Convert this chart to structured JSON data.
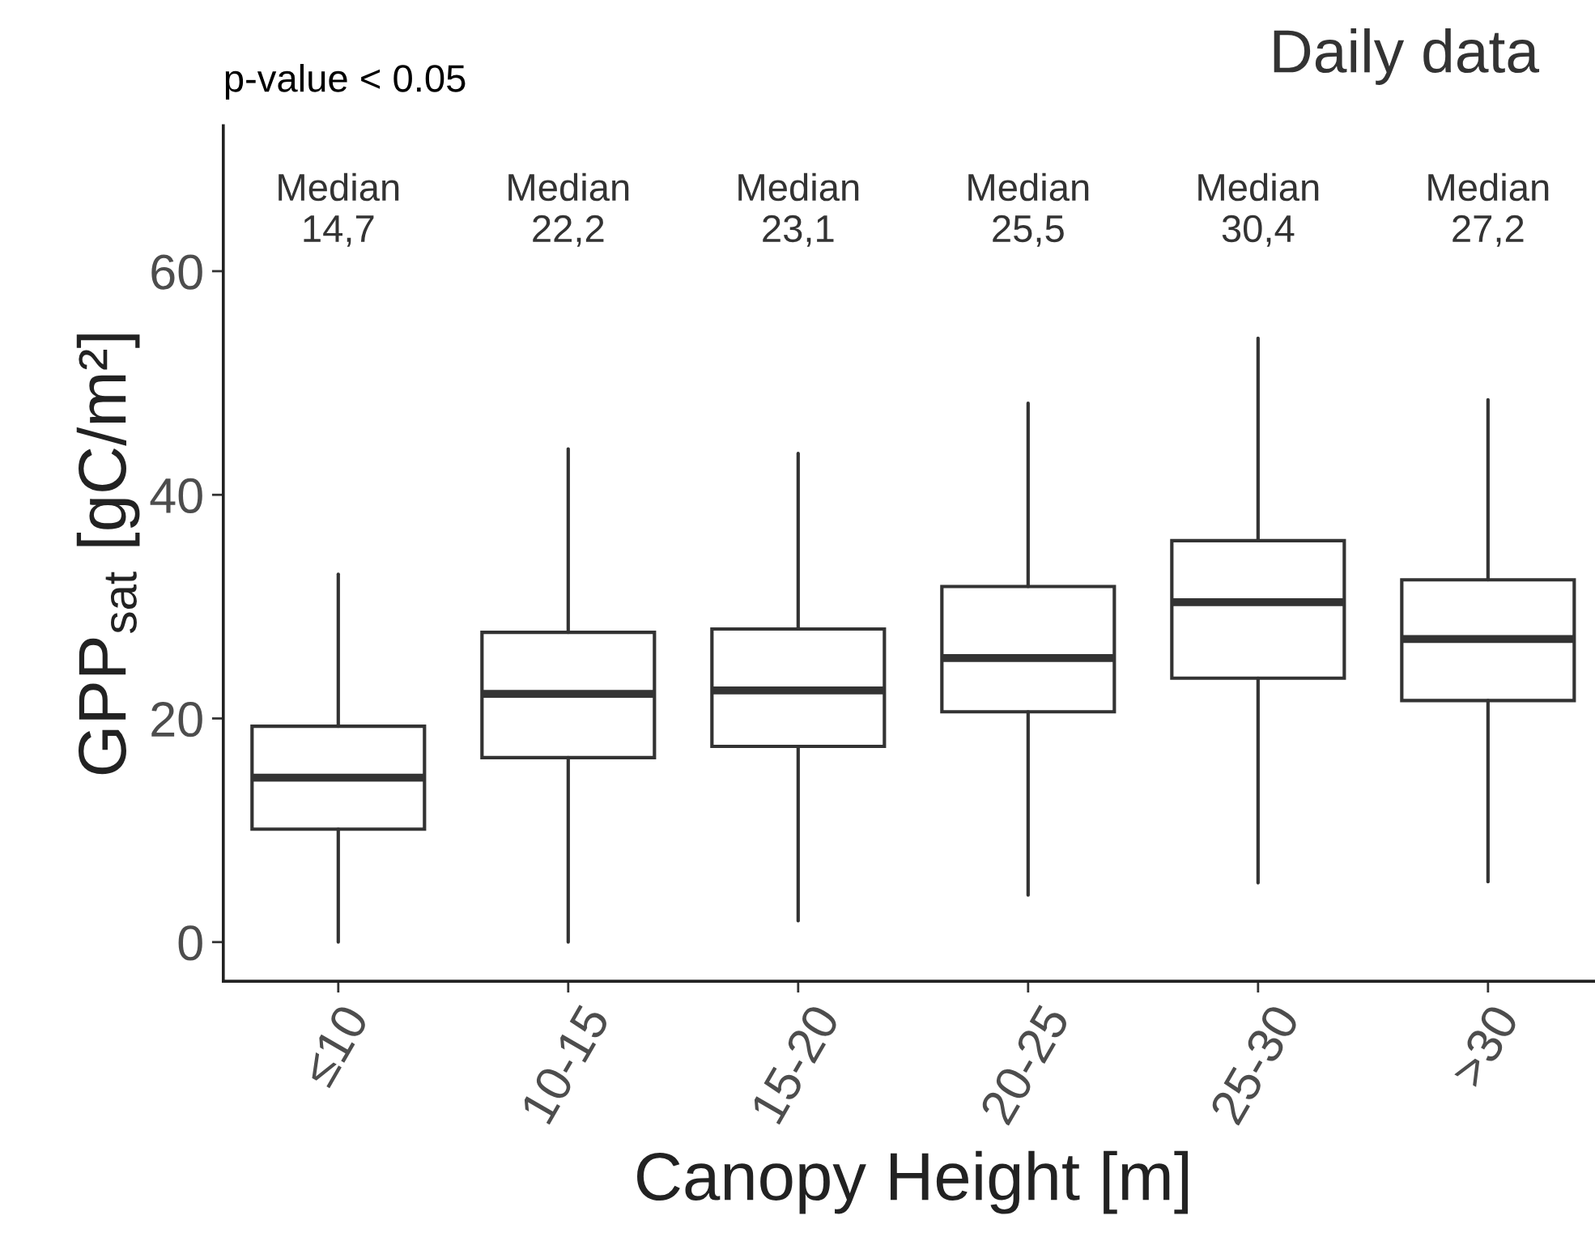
{
  "chart_data": {
    "type": "box",
    "title": "Daily data",
    "subtitle": "p-value < 0.05",
    "xlabel": "Canopy Height [m]",
    "ylabel": "GPP$_{sat}$ [gC/m²]",
    "categories": [
      "≤10",
      "10-15",
      "15-20",
      "20-25",
      "25-30",
      ">30"
    ],
    "boxes": [
      {
        "low": 0,
        "q1": 10.1,
        "median": 14.7,
        "q3": 19.3,
        "high": 32.9
      },
      {
        "low": 0,
        "q1": 16.5,
        "median": 22.2,
        "q3": 27.7,
        "high": 44.1
      },
      {
        "low": 1.9,
        "q1": 17.5,
        "median": 22.5,
        "q3": 28.0,
        "high": 43.7
      },
      {
        "low": 4.2,
        "q1": 20.6,
        "median": 25.4,
        "q3": 31.8,
        "high": 48.2
      },
      {
        "low": 5.3,
        "q1": 23.6,
        "median": 30.4,
        "q3": 35.9,
        "high": 54.0
      },
      {
        "low": 5.4,
        "q1": 21.6,
        "median": 27.1,
        "q3": 32.4,
        "high": 48.5
      }
    ],
    "color": "#333333",
    "annotations": [
      "Median\n14,7",
      "Median\n22,2",
      "Median\n23,1",
      "Median\n25,5",
      "Median\n30,4",
      "Median\n27,2"
    ],
    "ylim": [
      -3.5,
      73
    ],
    "yticks": [
      0,
      20,
      40,
      60
    ],
    "grid": false
  }
}
